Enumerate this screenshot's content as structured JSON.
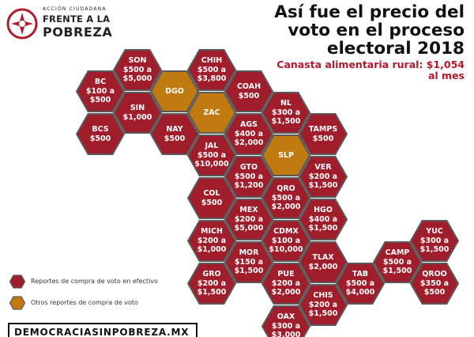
{
  "colors": {
    "cash": "#a01d2b",
    "other": "#c07a10",
    "stroke": "#5a5a5a",
    "accent": "#b01a2e"
  },
  "logo": {
    "small": "ACCIÓN CIUDADANA",
    "line1": "FRENTE A LA",
    "line2": "POBREZA"
  },
  "title": "Así fue el precio del voto en el proceso electoral 2018",
  "subtitle": "Canasta alimentaria rural: $1,054 al mes",
  "states": [
    {
      "code": "SON",
      "lines": [
        "$500 a",
        "$5,000"
      ],
      "type": "cash"
    },
    {
      "code": "CHIH",
      "lines": [
        "$500 a",
        "$3,800"
      ],
      "type": "cash"
    },
    {
      "code": "BC",
      "lines": [
        "$100 a",
        "$500"
      ],
      "type": "cash"
    },
    {
      "code": "DGO",
      "lines": [],
      "type": "other"
    },
    {
      "code": "COAH",
      "lines": [
        "$500"
      ],
      "type": "cash"
    },
    {
      "code": "SIN",
      "lines": [
        "$1,000"
      ],
      "type": "cash"
    },
    {
      "code": "ZAC",
      "lines": [],
      "type": "other"
    },
    {
      "code": "NL",
      "lines": [
        "$300 a",
        "$1,500"
      ],
      "type": "cash"
    },
    {
      "code": "BCS",
      "lines": [
        "$500"
      ],
      "type": "cash"
    },
    {
      "code": "NAY",
      "lines": [
        "$500"
      ],
      "type": "cash"
    },
    {
      "code": "AGS",
      "lines": [
        "$400 a",
        "$2,000"
      ],
      "type": "cash"
    },
    {
      "code": "TAMPS",
      "lines": [
        "$500"
      ],
      "type": "cash"
    },
    {
      "code": "JAL",
      "lines": [
        "$500 a",
        "$10,000"
      ],
      "type": "cash"
    },
    {
      "code": "SLP",
      "lines": [],
      "type": "other"
    },
    {
      "code": "GTO",
      "lines": [
        "$500 a",
        "$1,200"
      ],
      "type": "cash"
    },
    {
      "code": "VER",
      "lines": [
        "$200 a",
        "$1,500"
      ],
      "type": "cash"
    },
    {
      "code": "COL",
      "lines": [
        "$500"
      ],
      "type": "cash"
    },
    {
      "code": "QRO",
      "lines": [
        "$500 a",
        "$2,000"
      ],
      "type": "cash"
    },
    {
      "code": "MEX",
      "lines": [
        "$200 a",
        "$5,000"
      ],
      "type": "cash"
    },
    {
      "code": "HGO",
      "lines": [
        "$400 a",
        "$1,500"
      ],
      "type": "cash"
    },
    {
      "code": "MICH",
      "lines": [
        "$200 a",
        "$1,000"
      ],
      "type": "cash"
    },
    {
      "code": "CDMX",
      "lines": [
        "$100 a",
        "$10,000"
      ],
      "type": "cash"
    },
    {
      "code": "YUC",
      "lines": [
        "$300 a",
        "$1,500"
      ],
      "type": "cash"
    },
    {
      "code": "TLAX",
      "lines": [
        "$2,000"
      ],
      "type": "cash"
    },
    {
      "code": "MOR",
      "lines": [
        "$150 a",
        "$1,500"
      ],
      "type": "cash"
    },
    {
      "code": "CAMP",
      "lines": [
        "$500 a",
        "$1,500"
      ],
      "type": "cash"
    },
    {
      "code": "GRO",
      "lines": [
        "$200 a",
        "$1,500"
      ],
      "type": "cash"
    },
    {
      "code": "PUE",
      "lines": [
        "$200 a",
        "$2,000"
      ],
      "type": "cash"
    },
    {
      "code": "TAB",
      "lines": [
        "$500 a",
        "$4,000"
      ],
      "type": "cash"
    },
    {
      "code": "QROO",
      "lines": [
        "$350 a",
        "$500"
      ],
      "type": "cash"
    },
    {
      "code": "CHIS",
      "lines": [
        "$200 a",
        "$1,500"
      ],
      "type": "cash"
    },
    {
      "code": "OAX",
      "lines": [
        "$300 a",
        "$3,000"
      ],
      "type": "cash"
    }
  ],
  "legend": [
    {
      "label": "Reportes de compra de voto en efectivo",
      "type": "cash"
    },
    {
      "label": "Otros reportes de compra de voto",
      "type": "other"
    }
  ],
  "footer": "DEMOCRACIASINPOBREZA.MX"
}
